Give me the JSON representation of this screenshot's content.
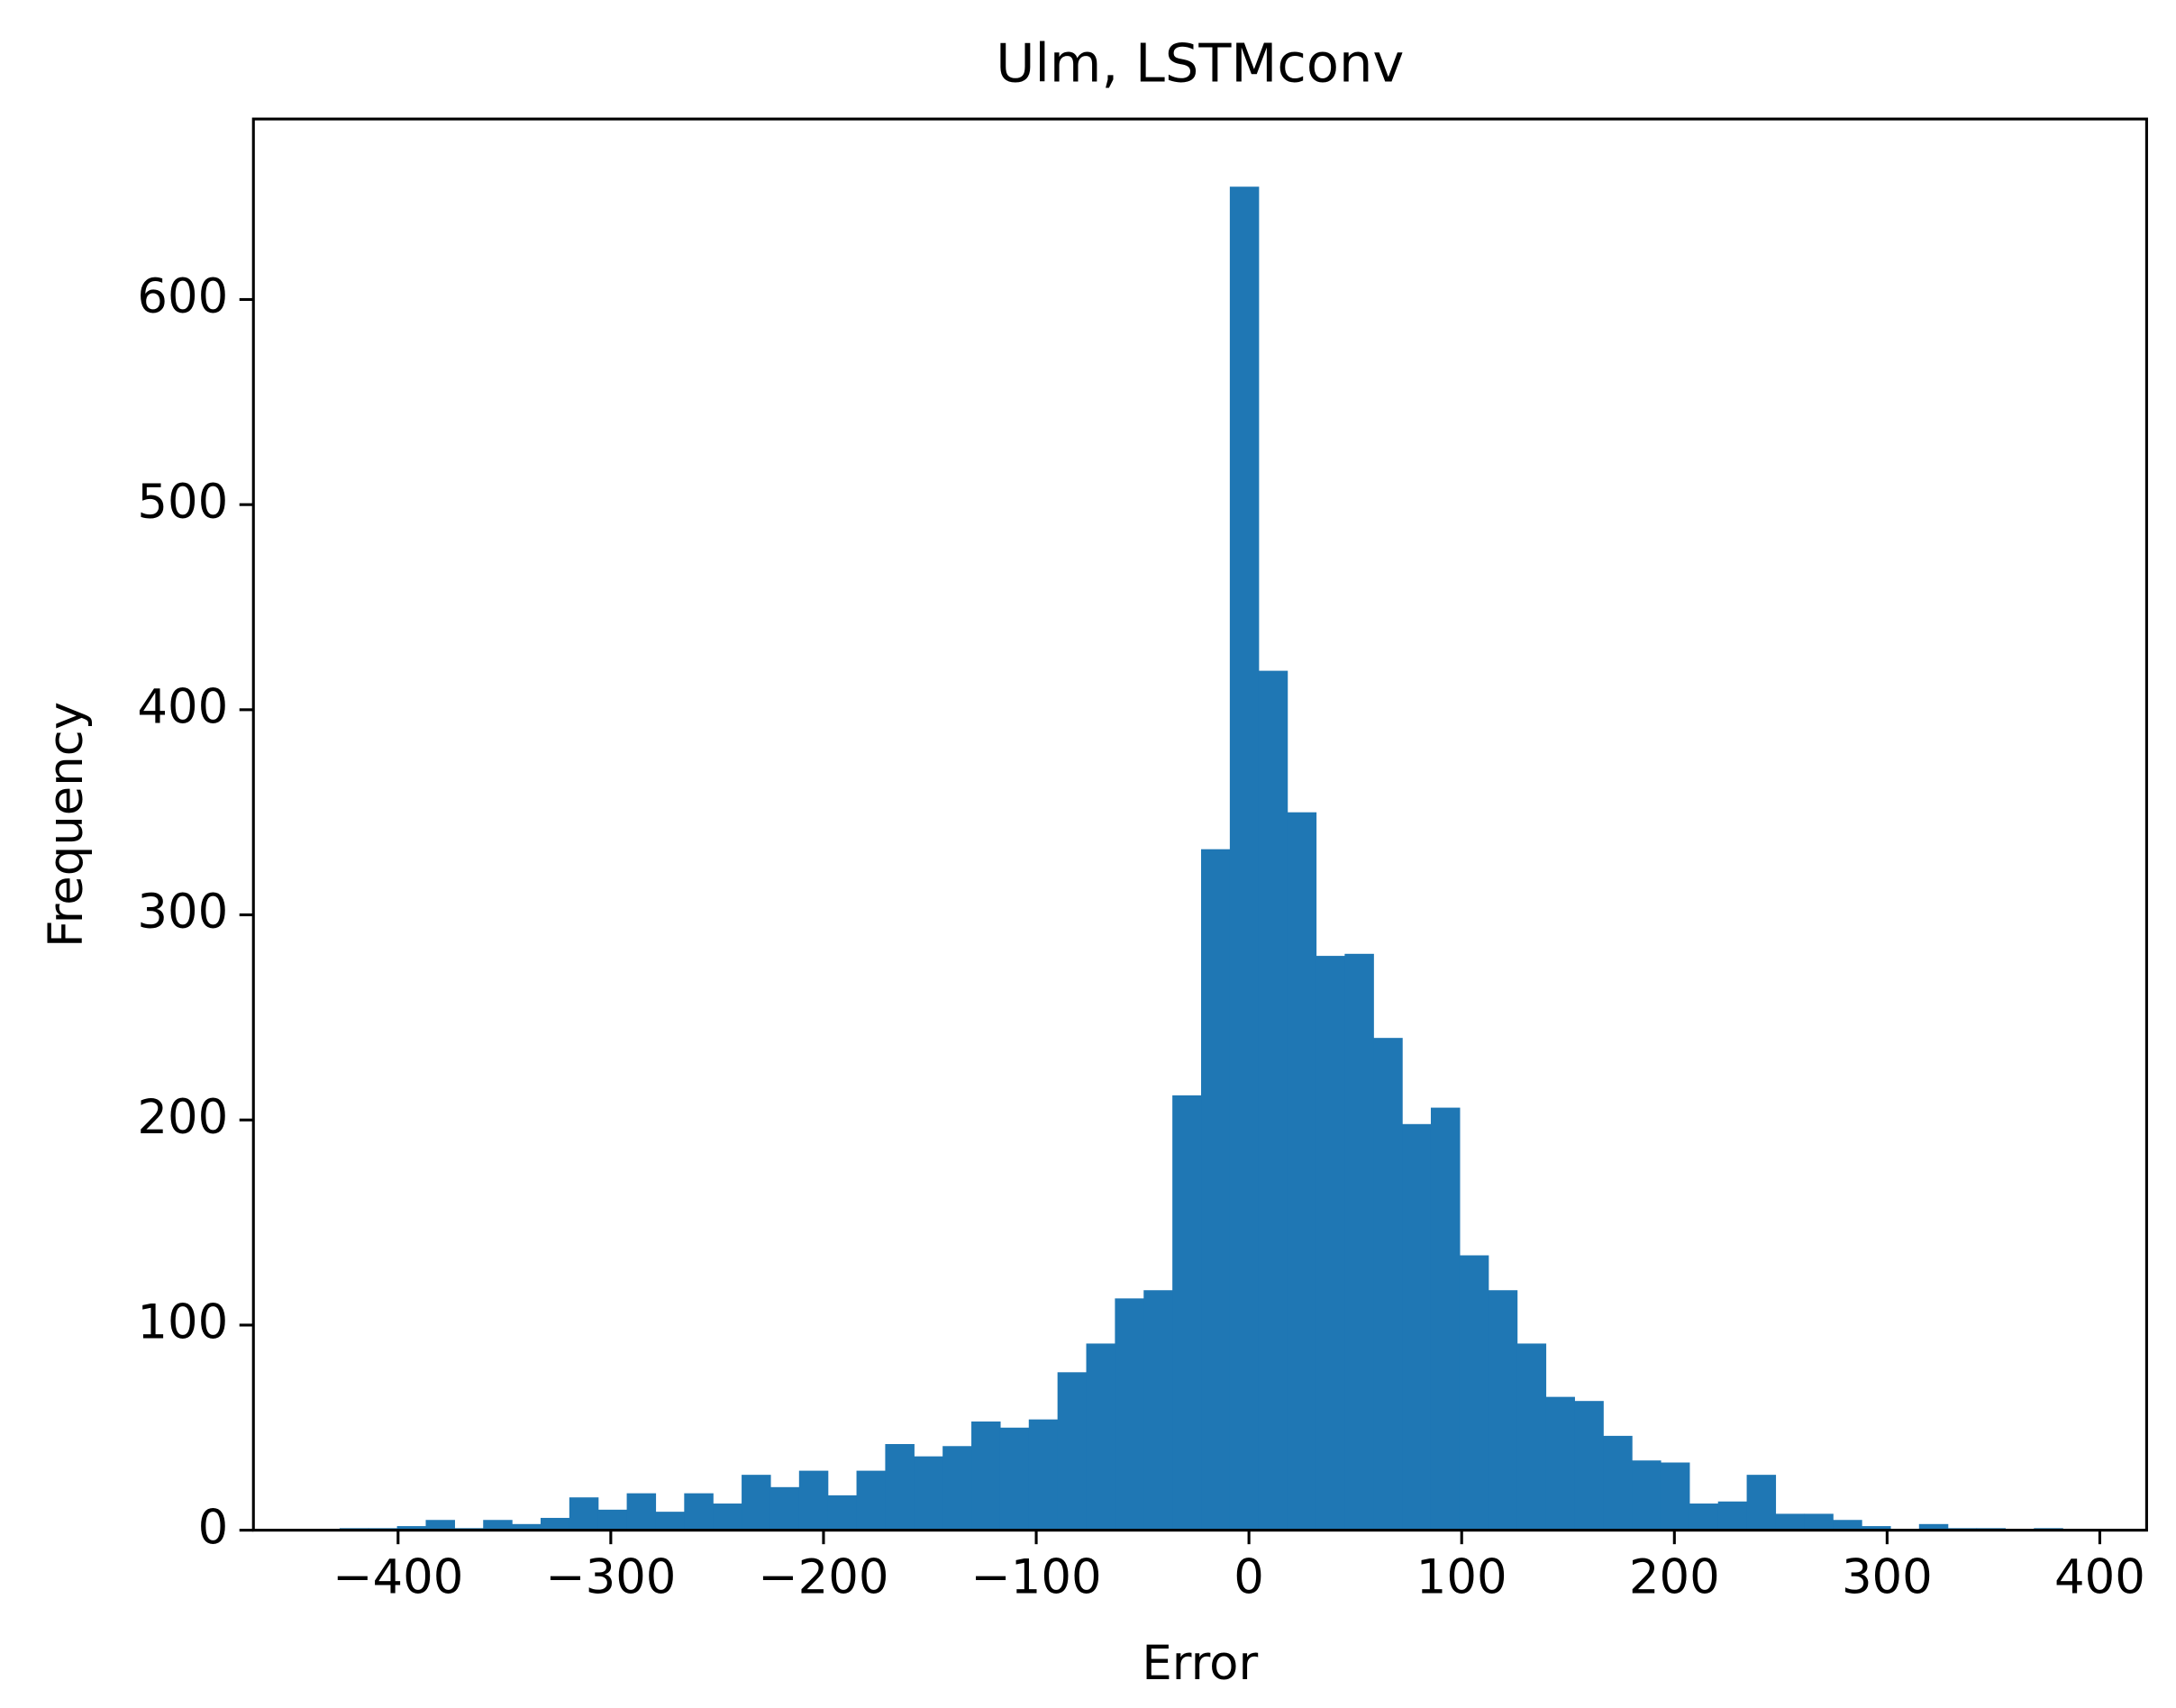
{
  "chart_data": {
    "type": "histogram",
    "title": "Ulm, LSTMconv",
    "xlabel": "Error",
    "ylabel": "Frequency",
    "color": "#1f77b4",
    "bins": [
      -427.5,
      -414,
      -400.5,
      -387,
      -373.5,
      -360,
      -346.5,
      -333,
      -319.5,
      -306,
      -292.5,
      -279,
      -265.5,
      -252,
      -238.5,
      -225,
      -211.5,
      -198,
      -184.5,
      -171,
      -157.5,
      -144,
      -130.5,
      -117,
      -103.5,
      -90,
      -76.5,
      -63,
      -49.5,
      -36,
      -22.5,
      -9,
      4.5,
      18,
      31.5,
      45,
      58.5,
      72,
      85.5,
      99,
      112.5,
      126,
      139.5,
      153,
      166.5,
      180,
      193.5,
      207,
      220.5,
      234,
      247.5,
      261,
      274.5,
      288,
      301.5,
      315,
      328.5,
      342,
      355.5,
      369,
      382.5
    ],
    "values": [
      1,
      1,
      2,
      5,
      1,
      5,
      3,
      6,
      16,
      10,
      18,
      9,
      18,
      13,
      27,
      21,
      29,
      17,
      29,
      42,
      36,
      41,
      53,
      50,
      54,
      77,
      91,
      113,
      117,
      212,
      332,
      655,
      419,
      350,
      280,
      281,
      240,
      198,
      206,
      134,
      117,
      91,
      65,
      63,
      46,
      34,
      33,
      13,
      14,
      27,
      8,
      8,
      5,
      2,
      0,
      3,
      1,
      1,
      0,
      1
    ],
    "xlim": [
      -468,
      422
    ],
    "ylim": [
      0,
      688
    ],
    "xticks": [
      {
        "value": -400,
        "label": "−400"
      },
      {
        "value": -300,
        "label": "−300"
      },
      {
        "value": -200,
        "label": "−200"
      },
      {
        "value": -100,
        "label": "−100"
      },
      0,
      100,
      200,
      300,
      400
    ],
    "yticks": [
      0,
      100,
      200,
      300,
      400,
      500,
      600
    ]
  }
}
